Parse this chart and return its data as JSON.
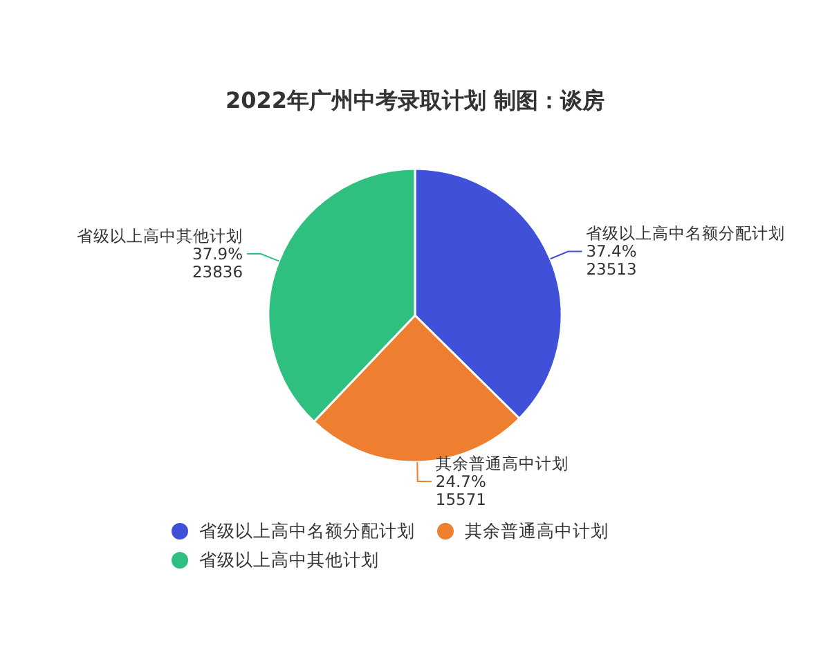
{
  "chart_data": {
    "type": "pie",
    "title": "2022年广州中考录取计划 制图：谈房",
    "categories": [
      "省级以上高中名额分配计划",
      "其余普通高中计划",
      "省级以上高中其他计划"
    ],
    "values": [
      37.4,
      24.7,
      37.9
    ],
    "value_labels": [
      "37.4%\n23513",
      "24.7%\n15571",
      "37.9%\n23836"
    ],
    "colors": [
      "#4150d8",
      "#ee7e30",
      "#2fc07f"
    ],
    "legend": "bottom"
  }
}
